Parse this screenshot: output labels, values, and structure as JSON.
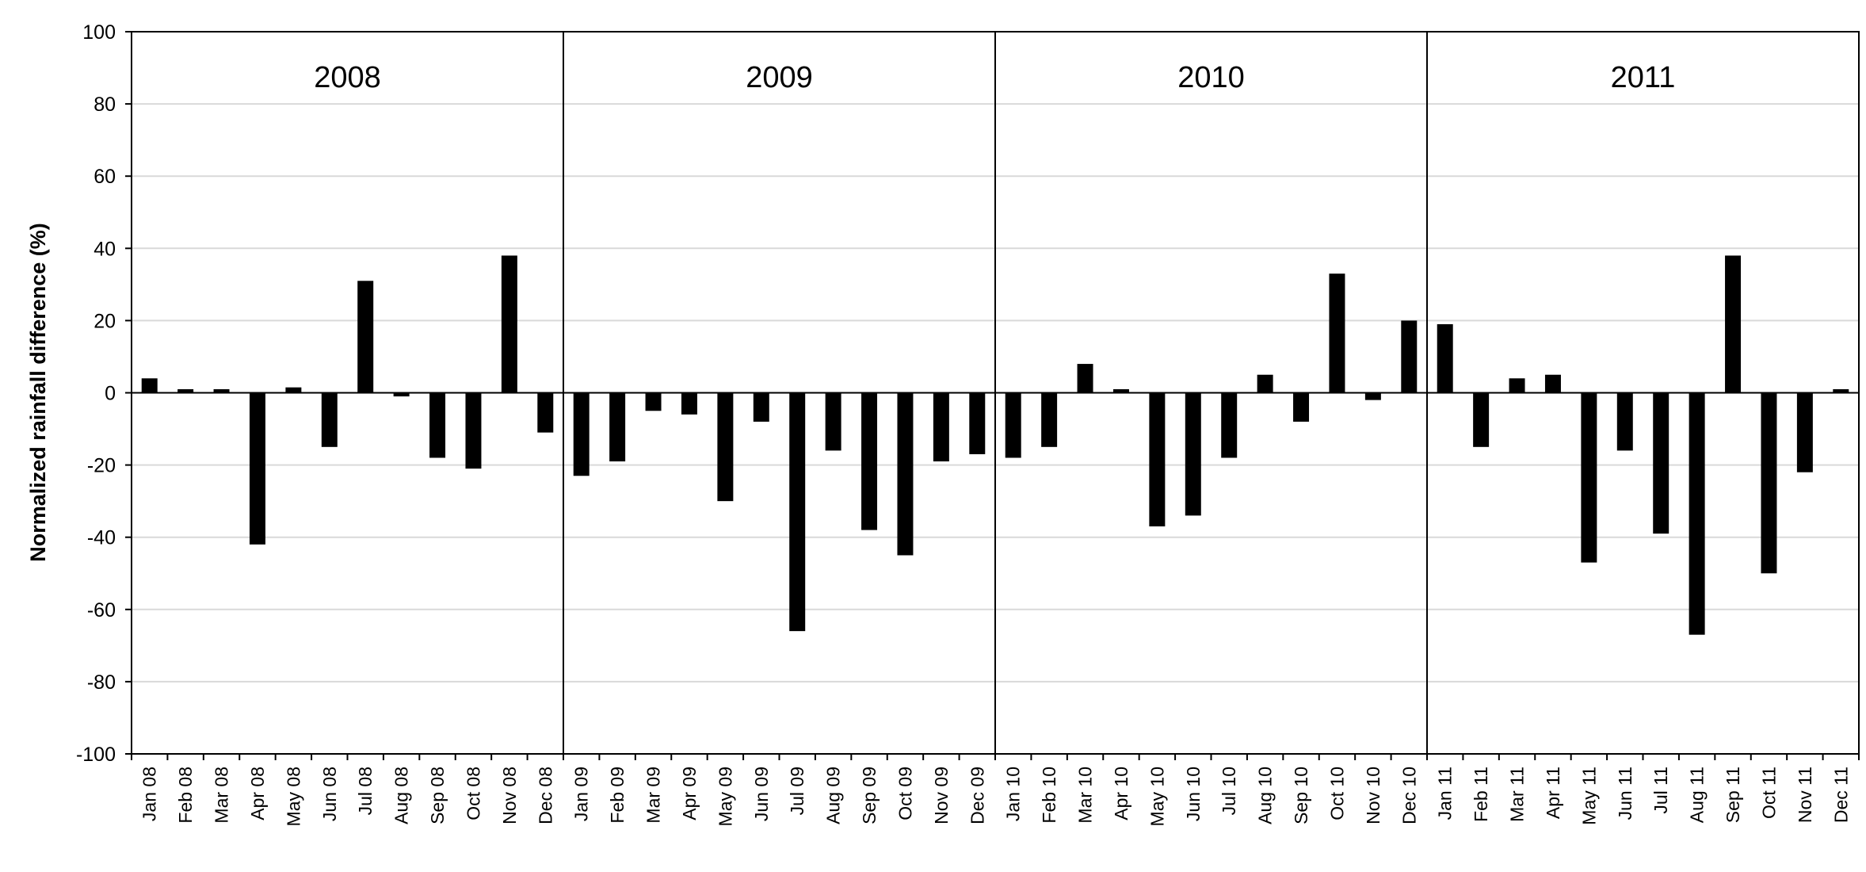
{
  "chart_data": {
    "type": "bar",
    "ylabel": "Normalized rainfall difference (%)",
    "ylim": [
      -100,
      100
    ],
    "yticks": [
      100,
      80,
      60,
      40,
      20,
      0,
      -20,
      -40,
      -60,
      -80,
      -100
    ],
    "grid": true,
    "bar_color": "#000000",
    "gridline_color": "#d9d9d9",
    "panels": [
      "2008",
      "2009",
      "2010",
      "2011"
    ],
    "categories": [
      "Jan 08",
      "Feb 08",
      "Mar 08",
      "Apr 08",
      "May 08",
      "Jun 08",
      "Jul 08",
      "Aug 08",
      "Sep 08",
      "Oct 08",
      "Nov 08",
      "Dec 08",
      "Jan 09",
      "Feb 09",
      "Mar 09",
      "Apr 09",
      "May 09",
      "Jun 09",
      "Jul 09",
      "Aug 09",
      "Sep 09",
      "Oct 09",
      "Nov 09",
      "Dec 09",
      "Jan 10",
      "Feb 10",
      "Mar 10",
      "Apr 10",
      "May 10",
      "Jun 10",
      "Jul 10",
      "Aug 10",
      "Sep 10",
      "Oct 10",
      "Nov 10",
      "Dec 10",
      "Jan 11",
      "Feb 11",
      "Mar 11",
      "Apr 11",
      "May 11",
      "Jun 11",
      "Jul 11",
      "Aug 11",
      "Sep 11",
      "Oct 11",
      "Nov 11",
      "Dec 11"
    ],
    "values": [
      4,
      1,
      1,
      -42,
      1.5,
      -15,
      31,
      -1,
      -18,
      -21,
      38,
      -11,
      -23,
      -19,
      -5,
      -6,
      -30,
      -8,
      -66,
      -16,
      -38,
      -45,
      -19,
      -17,
      -18,
      -15,
      8,
      1,
      -37,
      -34,
      -18,
      5,
      -8,
      33,
      -2,
      20,
      19,
      -15,
      4,
      5,
      -47,
      -16,
      -39,
      -67,
      38,
      -50,
      -22,
      1
    ]
  }
}
